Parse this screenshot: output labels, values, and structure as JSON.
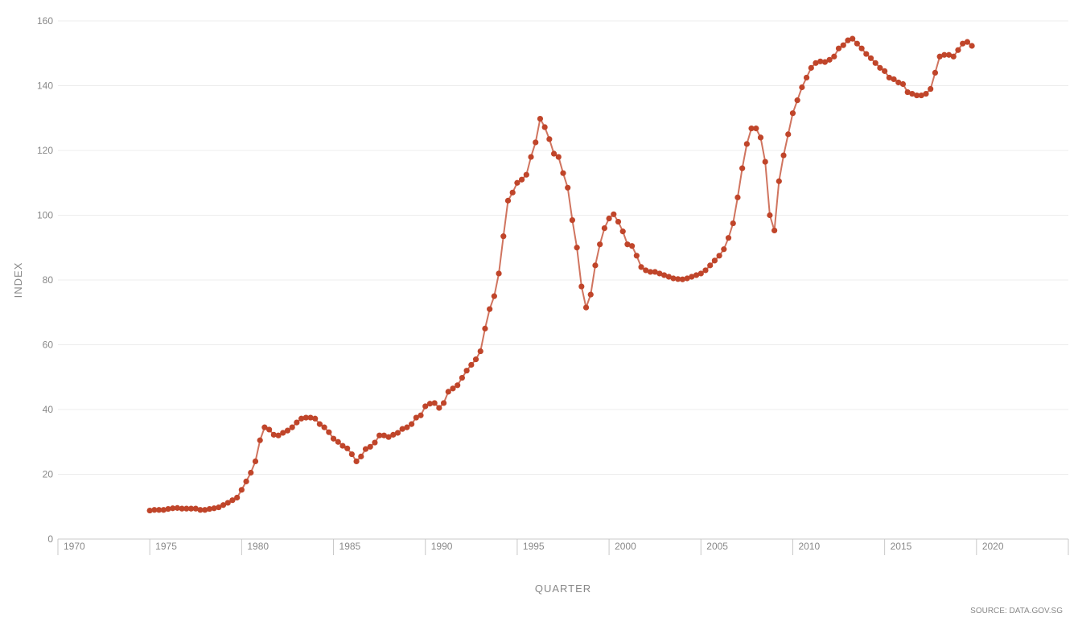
{
  "chart_data": {
    "type": "line",
    "xlabel": "QUARTER",
    "ylabel": "INDEX",
    "source": "SOURCE: DATA.GOV.SG",
    "xlim": [
      1970,
      2025
    ],
    "ylim": [
      0,
      160
    ],
    "x_ticks": [
      "1970",
      "1975",
      "1980",
      "1985",
      "1990",
      "1995",
      "2000",
      "2005",
      "2010",
      "2015",
      "2020"
    ],
    "y_ticks": [
      "0",
      "20",
      "40",
      "60",
      "80",
      "100",
      "120",
      "140",
      "160"
    ],
    "grid": "horizontal",
    "legend": "none",
    "color": "#c0452a",
    "series": [
      {
        "start": "1975-Q1",
        "values": [
          8.8,
          9.0,
          9.0,
          9.0,
          9.3,
          9.5,
          9.6,
          9.4,
          9.4,
          9.4,
          9.4,
          9.0,
          9.0,
          9.3,
          9.5,
          9.8,
          10.5,
          11.2,
          12.0,
          12.8,
          15.2,
          17.8,
          20.5,
          24.0,
          30.5,
          34.5,
          33.8,
          32.2,
          32.0,
          32.8,
          33.5,
          34.5,
          36.0,
          37.2,
          37.5,
          37.5,
          37.2,
          35.5,
          34.5,
          33.0,
          31.0,
          30.0,
          28.8,
          28.0,
          26.2,
          24.0,
          25.5,
          27.8,
          28.5,
          29.8,
          32.0,
          32.0,
          31.5,
          32.2,
          32.8,
          34.0,
          34.5,
          35.5,
          37.5,
          38.2,
          41.0,
          41.8,
          42.0,
          40.5,
          42.0,
          45.5,
          46.5,
          47.5,
          49.8,
          52.0,
          53.8,
          55.5,
          58.0,
          65.0,
          71.0,
          75.0,
          82.0,
          93.5,
          104.5,
          107.0,
          110.0,
          111.0,
          112.5,
          118.0,
          122.5,
          129.8,
          127.2,
          123.5,
          119.0,
          118.0,
          113.0,
          108.5,
          98.5,
          90.0,
          78.0,
          71.5,
          75.5,
          84.5,
          91.0,
          96.0,
          99.0,
          100.3,
          98.0,
          95.0,
          91.0,
          90.5,
          87.5,
          84.0,
          83.0,
          82.5,
          82.5,
          82.0,
          81.5,
          81.0,
          80.5,
          80.3,
          80.2,
          80.5,
          81.0,
          81.5,
          82.0,
          83.0,
          84.5,
          86.0,
          87.5,
          89.5,
          93.0,
          97.5,
          105.5,
          114.5,
          122.0,
          126.8,
          126.8,
          124.0,
          116.5,
          100.0,
          95.3,
          110.5,
          118.5,
          125.0,
          131.5,
          135.5,
          139.5,
          142.5,
          145.5,
          147.0,
          147.5,
          147.3,
          148.0,
          149.0,
          151.5,
          152.5,
          154.0,
          154.5,
          153.0,
          151.5,
          149.8,
          148.5,
          147.0,
          145.5,
          144.5,
          142.5,
          142.0,
          141.0,
          140.5,
          138.0,
          137.5,
          137.0,
          137.0,
          137.5,
          139.0,
          144.0,
          149.0,
          149.5,
          149.5,
          149.0,
          151.0,
          153.0,
          153.5,
          152.3
        ]
      }
    ]
  }
}
